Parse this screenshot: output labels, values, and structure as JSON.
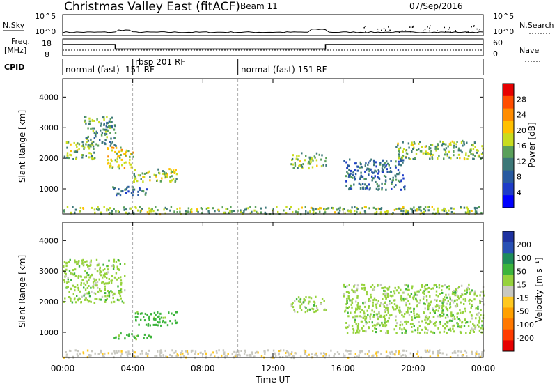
{
  "header": {
    "radar": "Christmas Valley East (fitACF)",
    "beam": "Beam 11",
    "date": "07/Sep/2016"
  },
  "nsky_panel": {
    "left_label": "N.Sky",
    "left_ticks": [
      "10^5",
      "10^0"
    ],
    "right_ticks": [
      "10^5",
      "10^0"
    ],
    "right_label": "N.Search"
  },
  "freq_panel": {
    "left_label_1": "Freq.",
    "left_label_2": "[MHz]",
    "left_ticks": [
      "18",
      "8"
    ],
    "right_ticks": [
      "60",
      "0"
    ],
    "right_label": "Nave"
  },
  "cpid_panel": {
    "label": "CPID",
    "segments": [
      "normal (fast) -151 RF",
      "rbsp 201 RF",
      "normal (fast) 151 RF"
    ]
  },
  "power_panel": {
    "ylabel": "Slant Range [km]",
    "yticks": [
      "4000",
      "3000",
      "2000",
      "1000"
    ],
    "colorbar_label": "Power [dB]",
    "colorbar_ticks": [
      "28",
      "24",
      "20",
      "16",
      "12",
      "8",
      "4"
    ],
    "colorbar_colors": [
      "#e60000",
      "#ff4d00",
      "#ff8c00",
      "#ffc000",
      "#c8dc1e",
      "#5aa05a",
      "#3c7878",
      "#285aa0",
      "#1e3cc8",
      "#0000ff"
    ]
  },
  "velocity_panel": {
    "ylabel": "Slant Range [km]",
    "yticks": [
      "4000",
      "3000",
      "2000",
      "1000"
    ],
    "colorbar_label": "Velocity [m s⁻¹]",
    "colorbar_ticks": [
      "200",
      "100",
      "50",
      "15",
      "-15",
      "-50",
      "-100",
      "-200"
    ],
    "colorbar_colors": [
      "#1e32a0",
      "#2850b4",
      "#1e8c5a",
      "#3cb43c",
      "#96d23c",
      "#c8c8c0",
      "#ffc81e",
      "#ffa000",
      "#ff7800",
      "#ff3c00",
      "#e60000"
    ]
  },
  "x_axis": {
    "ticks": [
      "00:00",
      "04:00",
      "08:00",
      "12:00",
      "16:00",
      "20:00",
      "00:00"
    ],
    "label": "Time UT"
  },
  "chart_data": {
    "type": "heatmap",
    "x_range_hours": [
      0,
      24
    ],
    "y_range_km": [
      180,
      4600
    ],
    "mode_change_times_hours": [
      4.0,
      10.0
    ],
    "nave_level": 20,
    "freq_high_mhz": 15,
    "freq_low_mhz": 11,
    "freq_low_interval_hours": [
      3.0,
      15.0
    ],
    "power_clusters": [
      {
        "t0": 0.0,
        "t1": 1.8,
        "r0": 2000,
        "r1": 2600,
        "db": 14
      },
      {
        "t0": 1.2,
        "t1": 3.0,
        "r0": 2400,
        "r1": 3400,
        "db": 12
      },
      {
        "t0": 2.5,
        "t1": 4.0,
        "r0": 1700,
        "r1": 2400,
        "db": 18
      },
      {
        "t0": 4.0,
        "t1": 6.5,
        "r0": 1250,
        "r1": 1700,
        "db": 16
      },
      {
        "t0": 2.8,
        "t1": 5.0,
        "r0": 800,
        "r1": 1100,
        "db": 8
      },
      {
        "t0": 0.0,
        "t1": 24.0,
        "r0": 200,
        "r1": 450,
        "db": 14
      },
      {
        "t0": 13.0,
        "t1": 15.0,
        "r0": 1700,
        "r1": 2200,
        "db": 14
      },
      {
        "t0": 16.0,
        "t1": 19.5,
        "r0": 1000,
        "r1": 2000,
        "db": 8
      },
      {
        "t0": 19.0,
        "t1": 24.0,
        "r0": 2000,
        "r1": 2600,
        "db": 14
      }
    ],
    "velocity_clusters": [
      {
        "t0": 0.0,
        "t1": 3.5,
        "r0": 2000,
        "r1": 3400,
        "v": 0
      },
      {
        "t0": 4.0,
        "t1": 6.5,
        "r0": 1250,
        "r1": 1700,
        "v": 30
      },
      {
        "t0": 2.8,
        "t1": 5.0,
        "r0": 800,
        "r1": 1000,
        "v": 30
      },
      {
        "t0": 0.0,
        "t1": 24.0,
        "r0": 200,
        "r1": 450,
        "v": -40
      },
      {
        "t0": 13.0,
        "t1": 15.0,
        "r0": 1700,
        "r1": 2200,
        "v": 0
      },
      {
        "t0": 16.0,
        "t1": 24.0,
        "r0": 1000,
        "r1": 2600,
        "v": 0
      }
    ]
  }
}
